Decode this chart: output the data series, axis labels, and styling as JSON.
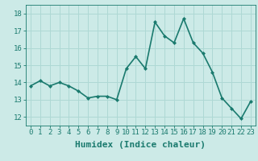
{
  "x": [
    0,
    1,
    2,
    3,
    4,
    5,
    6,
    7,
    8,
    9,
    10,
    11,
    12,
    13,
    14,
    15,
    16,
    17,
    18,
    19,
    20,
    21,
    22,
    23
  ],
  "y": [
    13.8,
    14.1,
    13.8,
    14.0,
    13.8,
    13.5,
    13.1,
    13.2,
    13.2,
    13.0,
    14.8,
    15.5,
    14.8,
    17.5,
    16.7,
    16.3,
    17.7,
    16.3,
    15.7,
    14.6,
    13.1,
    12.5,
    11.9,
    12.9
  ],
  "line_color": "#1a7a6e",
  "marker": "D",
  "marker_size": 2.0,
  "bg_color": "#cceae7",
  "grid_color": "#aed8d4",
  "axis_color": "#1a7a6e",
  "tick_color": "#1a7a6e",
  "xlabel": "Humidex (Indice chaleur)",
  "xlabel_color": "#1a7a6e",
  "ylim": [
    11.5,
    18.5
  ],
  "xlim": [
    -0.5,
    23.5
  ],
  "yticks": [
    12,
    13,
    14,
    15,
    16,
    17,
    18
  ],
  "xticks": [
    0,
    1,
    2,
    3,
    4,
    5,
    6,
    7,
    8,
    9,
    10,
    11,
    12,
    13,
    14,
    15,
    16,
    17,
    18,
    19,
    20,
    21,
    22,
    23
  ],
  "linewidth": 1.2,
  "tick_fontsize": 6.5,
  "label_font_size": 8.0
}
